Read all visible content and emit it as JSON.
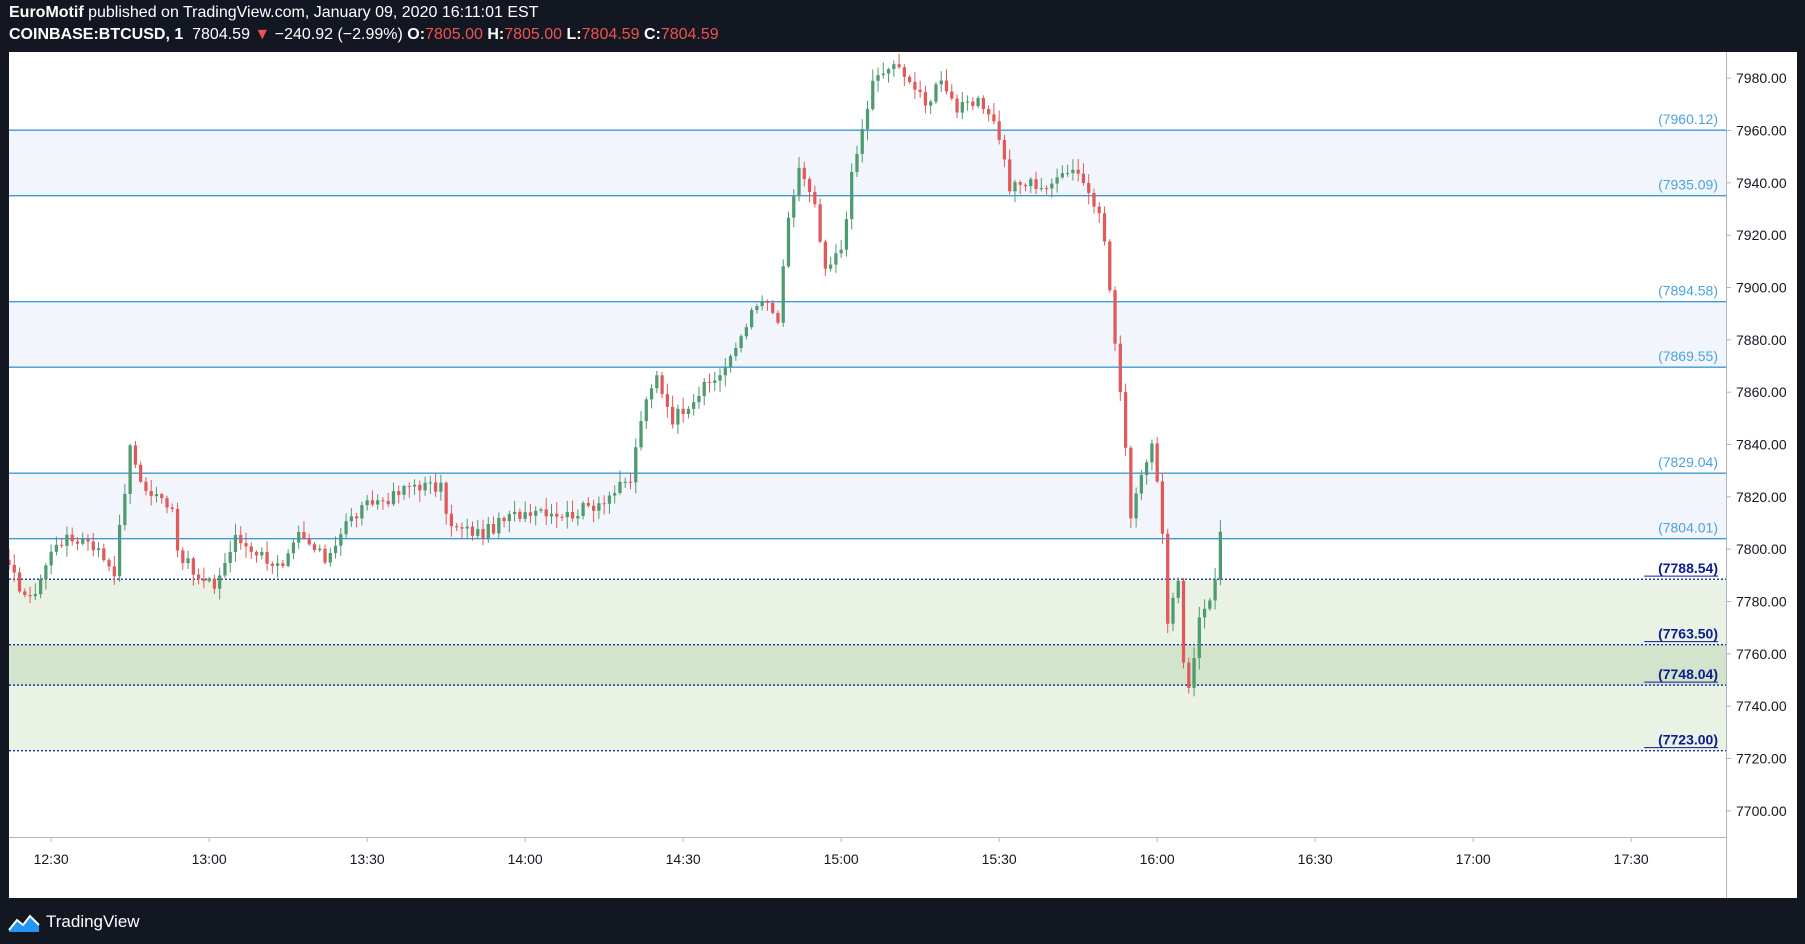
{
  "header": {
    "author": "EuroMotif",
    "published": " published on TradingView.com, January 09, 2020 16:11:01 EST",
    "symbol": "COINBASE:BTCUSD, 1",
    "last": "7804.59",
    "change": "−240.92 (−2.99%)",
    "o_label": "O:",
    "o_value": "7805.00",
    "h_label": "H:",
    "h_value": "7805.00",
    "l_label": "L:",
    "l_value": "7804.59",
    "c_label": "C:",
    "c_value": "7804.59"
  },
  "footer": {
    "brand": "TradingView"
  },
  "colors": {
    "up": "#4f9a6f",
    "down": "#e0595b",
    "resistance_line": "#3d9ad6",
    "resistance_label": "#4aa3df",
    "resistance_zone": "#f2f6fc",
    "support_line": "#1d2fa0",
    "support_label": "#0c1c8c",
    "support_zone_light": "#eaf2e6",
    "support_zone_dark": "#d2e4cb"
  },
  "chart_data": {
    "type": "candlestick",
    "ylim": [
      7690,
      7990
    ],
    "yticks": [
      "7700.00",
      "7720.00",
      "7740.00",
      "7760.00",
      "7780.00",
      "7800.00",
      "7820.00",
      "7840.00",
      "7860.00",
      "7880.00",
      "7900.00",
      "7920.00",
      "7940.00",
      "7960.00",
      "7980.00"
    ],
    "xlim": [
      "12:22",
      "17:48"
    ],
    "xticks": [
      {
        "time": "12:30",
        "label": "12:30"
      },
      {
        "time": "13:00",
        "label": "13:00"
      },
      {
        "time": "13:30",
        "label": "13:30"
      },
      {
        "time": "14:00",
        "label": "14:00"
      },
      {
        "time": "14:30",
        "label": "14:30"
      },
      {
        "time": "15:00",
        "label": "15:00"
      },
      {
        "time": "15:30",
        "label": "15:30"
      },
      {
        "time": "16:00",
        "label": "16:00"
      },
      {
        "time": "16:30",
        "label": "16:30"
      },
      {
        "time": "17:00",
        "label": "17:00"
      },
      {
        "time": "17:30",
        "label": "17:30"
      }
    ],
    "levels": [
      {
        "value": 7960.12,
        "label": "(7960.12)",
        "kind": "resistance"
      },
      {
        "value": 7935.09,
        "label": "(7935.09)",
        "kind": "resistance"
      },
      {
        "value": 7894.58,
        "label": "(7894.58)",
        "kind": "resistance"
      },
      {
        "value": 7869.55,
        "label": "(7869.55)",
        "kind": "resistance"
      },
      {
        "value": 7829.04,
        "label": "(7829.04)",
        "kind": "resistance"
      },
      {
        "value": 7804.01,
        "label": "(7804.01)",
        "kind": "resistance"
      },
      {
        "value": 7788.54,
        "label": "(7788.54)",
        "kind": "support"
      },
      {
        "value": 7763.5,
        "label": "(7763.50)",
        "kind": "support"
      },
      {
        "value": 7748.04,
        "label": "(7748.04)",
        "kind": "support"
      },
      {
        "value": 7723.0,
        "label": "(7723.00)",
        "kind": "support"
      }
    ],
    "zones": [
      {
        "from": 7935.09,
        "to": 7960.12,
        "kind": "resistance"
      },
      {
        "from": 7869.55,
        "to": 7894.58,
        "kind": "resistance"
      },
      {
        "from": 7804.01,
        "to": 7829.04,
        "kind": "resistance"
      },
      {
        "from": 7723.0,
        "to": 7788.54,
        "kind": "support-light"
      },
      {
        "from": 7748.04,
        "to": 7763.5,
        "kind": "support-dark"
      }
    ],
    "anchors": [
      {
        "time": "12:22",
        "price": 7792
      },
      {
        "time": "12:26",
        "price": 7780
      },
      {
        "time": "12:31",
        "price": 7803
      },
      {
        "time": "12:37",
        "price": 7804
      },
      {
        "time": "12:42",
        "price": 7792
      },
      {
        "time": "12:45",
        "price": 7838
      },
      {
        "time": "12:48",
        "price": 7822
      },
      {
        "time": "12:53",
        "price": 7817
      },
      {
        "time": "12:54",
        "price": 7800
      },
      {
        "time": "12:58",
        "price": 7788
      },
      {
        "time": "13:01",
        "price": 7786
      },
      {
        "time": "13:05",
        "price": 7804
      },
      {
        "time": "13:10",
        "price": 7798
      },
      {
        "time": "13:14",
        "price": 7792
      },
      {
        "time": "13:17",
        "price": 7805
      },
      {
        "time": "13:22",
        "price": 7796
      },
      {
        "time": "13:26",
        "price": 7810
      },
      {
        "time": "13:31",
        "price": 7818
      },
      {
        "time": "13:35",
        "price": 7820
      },
      {
        "time": "13:39",
        "price": 7825
      },
      {
        "time": "13:44",
        "price": 7823
      },
      {
        "time": "13:46",
        "price": 7808
      },
      {
        "time": "13:52",
        "price": 7806
      },
      {
        "time": "13:57",
        "price": 7812
      },
      {
        "time": "14:02",
        "price": 7816
      },
      {
        "time": "14:08",
        "price": 7813
      },
      {
        "time": "14:13",
        "price": 7817
      },
      {
        "time": "14:20",
        "price": 7826
      },
      {
        "time": "14:22",
        "price": 7850
      },
      {
        "time": "14:25",
        "price": 7866
      },
      {
        "time": "14:28",
        "price": 7850
      },
      {
        "time": "14:32",
        "price": 7858
      },
      {
        "time": "14:36",
        "price": 7865
      },
      {
        "time": "14:39",
        "price": 7872
      },
      {
        "time": "14:42",
        "price": 7887
      },
      {
        "time": "14:45",
        "price": 7895
      },
      {
        "time": "14:48",
        "price": 7887
      },
      {
        "time": "14:50",
        "price": 7925
      },
      {
        "time": "14:52",
        "price": 7946
      },
      {
        "time": "14:55",
        "price": 7930
      },
      {
        "time": "14:57",
        "price": 7905
      },
      {
        "time": "15:00",
        "price": 7915
      },
      {
        "time": "15:02",
        "price": 7942
      },
      {
        "time": "15:04",
        "price": 7960
      },
      {
        "time": "15:06",
        "price": 7978
      },
      {
        "time": "15:09",
        "price": 7984
      },
      {
        "time": "15:12",
        "price": 7983
      },
      {
        "time": "15:16",
        "price": 7969
      },
      {
        "time": "15:19",
        "price": 7981
      },
      {
        "time": "15:22",
        "price": 7968
      },
      {
        "time": "15:26",
        "price": 7970
      },
      {
        "time": "15:28",
        "price": 7968
      },
      {
        "time": "15:30",
        "price": 7958
      },
      {
        "time": "15:32",
        "price": 7938
      },
      {
        "time": "15:36",
        "price": 7940
      },
      {
        "time": "15:40",
        "price": 7938
      },
      {
        "time": "15:42",
        "price": 7946
      },
      {
        "time": "15:45",
        "price": 7945
      },
      {
        "time": "15:48",
        "price": 7932
      },
      {
        "time": "15:50",
        "price": 7920
      },
      {
        "time": "15:51",
        "price": 7898
      },
      {
        "time": "15:53",
        "price": 7860
      },
      {
        "time": "15:55",
        "price": 7814
      },
      {
        "time": "15:57",
        "price": 7830
      },
      {
        "time": "15:59",
        "price": 7838
      },
      {
        "time": "16:00",
        "price": 7828
      },
      {
        "time": "16:01",
        "price": 7805
      },
      {
        "time": "16:02",
        "price": 7770
      },
      {
        "time": "16:04",
        "price": 7788
      },
      {
        "time": "16:05",
        "price": 7758
      },
      {
        "time": "16:06",
        "price": 7748
      },
      {
        "time": "16:07",
        "price": 7760
      },
      {
        "time": "16:08",
        "price": 7773
      },
      {
        "time": "16:10",
        "price": 7782
      },
      {
        "time": "16:11",
        "price": 7788
      },
      {
        "time": "16:12",
        "price": 7805
      }
    ]
  }
}
